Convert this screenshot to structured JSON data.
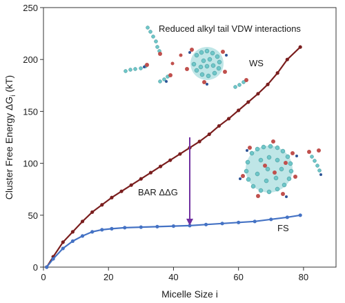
{
  "chart_data": {
    "type": "line",
    "xlabel": "Micelle Size i",
    "ylabel": "Cluster Free Energy ΔG",
    "ylabel_sub": "i",
    "ylabel_unit": " (kT)",
    "xlim": [
      0,
      90
    ],
    "ylim": [
      0,
      250
    ],
    "xticks": [
      0,
      20,
      40,
      60,
      80
    ],
    "yticks": [
      0,
      50,
      100,
      150,
      200,
      250
    ],
    "grid": false,
    "series": [
      {
        "name": "WS",
        "color": "#7a1e1e",
        "x": [
          1,
          3,
          6,
          9,
          12,
          15,
          18,
          21,
          24,
          27,
          30,
          33,
          36,
          39,
          42,
          45,
          48,
          51,
          54,
          57,
          60,
          63,
          66,
          69,
          72,
          75,
          79
        ],
        "y": [
          0,
          10,
          24,
          34,
          44,
          53,
          60,
          67,
          73,
          79,
          85,
          91,
          97,
          103,
          109,
          115,
          121,
          128,
          136,
          143,
          151,
          159,
          167,
          176,
          187,
          200,
          212
        ]
      },
      {
        "name": "FS",
        "color": "#4472c4",
        "x": [
          1,
          3,
          6,
          9,
          12,
          15,
          18,
          21,
          25,
          30,
          35,
          40,
          45,
          50,
          55,
          60,
          65,
          70,
          75,
          79
        ],
        "y": [
          0,
          8,
          18,
          25,
          30,
          34,
          36,
          37,
          38,
          38.5,
          39,
          39.5,
          40,
          41,
          42,
          43,
          44,
          46,
          48,
          50
        ]
      }
    ],
    "annotations": {
      "title_note": "Reduced alkyl tail VDW interactions",
      "ws_label": "WS",
      "fs_label": "FS",
      "bar_label": "BAR ΔΔG",
      "arrow": {
        "x": 45,
        "y_from": 125,
        "y_to": 40,
        "color": "#7030a0"
      }
    }
  }
}
